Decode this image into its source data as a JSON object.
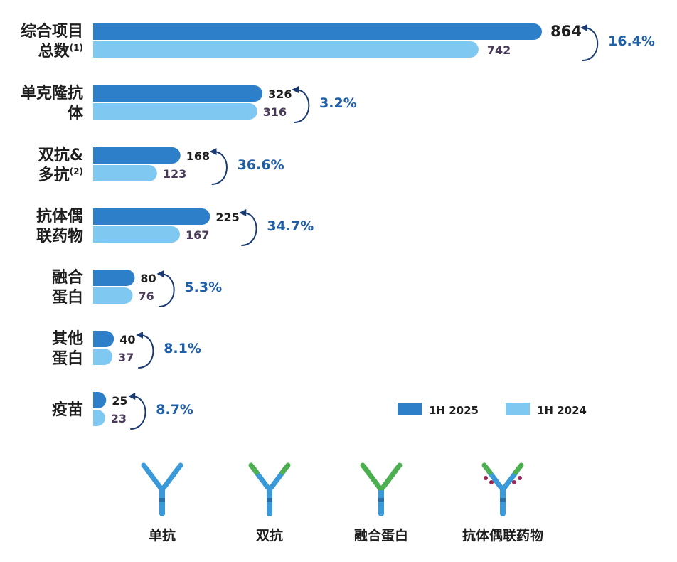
{
  "chart_data": {
    "type": "bar",
    "orientation": "horizontal",
    "categories": [
      {
        "lines": [
          "综合项目",
          "总数"
        ],
        "sup": "(1)"
      },
      {
        "lines": [
          "单克隆抗",
          "体"
        ],
        "sup": ""
      },
      {
        "lines": [
          "双抗&",
          "多抗"
        ],
        "sup": "(2)"
      },
      {
        "lines": [
          "抗体偶",
          "联药物"
        ],
        "sup": ""
      },
      {
        "lines": [
          "融合",
          "蛋白"
        ],
        "sup": ""
      },
      {
        "lines": [
          "其他",
          "蛋白"
        ],
        "sup": ""
      },
      {
        "lines": [
          "疫苗"
        ],
        "sup": ""
      }
    ],
    "series": [
      {
        "name": "1H 2025",
        "color": "#2e7fc9",
        "values": [
          864,
          326,
          168,
          225,
          80,
          40,
          25
        ]
      },
      {
        "name": "1H 2024",
        "color": "#7fc8f2",
        "values": [
          742,
          316,
          123,
          167,
          76,
          37,
          23
        ]
      }
    ],
    "growth_labels": [
      "16.4%",
      "3.2%",
      "36.6%",
      "34.7%",
      "5.3%",
      "8.1%",
      "8.7%"
    ],
    "xlim": [
      0,
      864
    ]
  },
  "icons": [
    {
      "label": "单抗",
      "arm_color": "#3a9ad9",
      "tip_color": "#3a9ad9",
      "dots": false
    },
    {
      "label": "双抗",
      "arm_color": "#3a9ad9",
      "tip_color": "#4caf50",
      "dots": false
    },
    {
      "label": "融合蛋白",
      "arm_color": "#4caf50",
      "tip_color": "#4caf50",
      "dots": false
    },
    {
      "label": "抗体偶联药物",
      "arm_color": "#3a9ad9",
      "tip_color": "#4caf50",
      "dots": true
    }
  ]
}
